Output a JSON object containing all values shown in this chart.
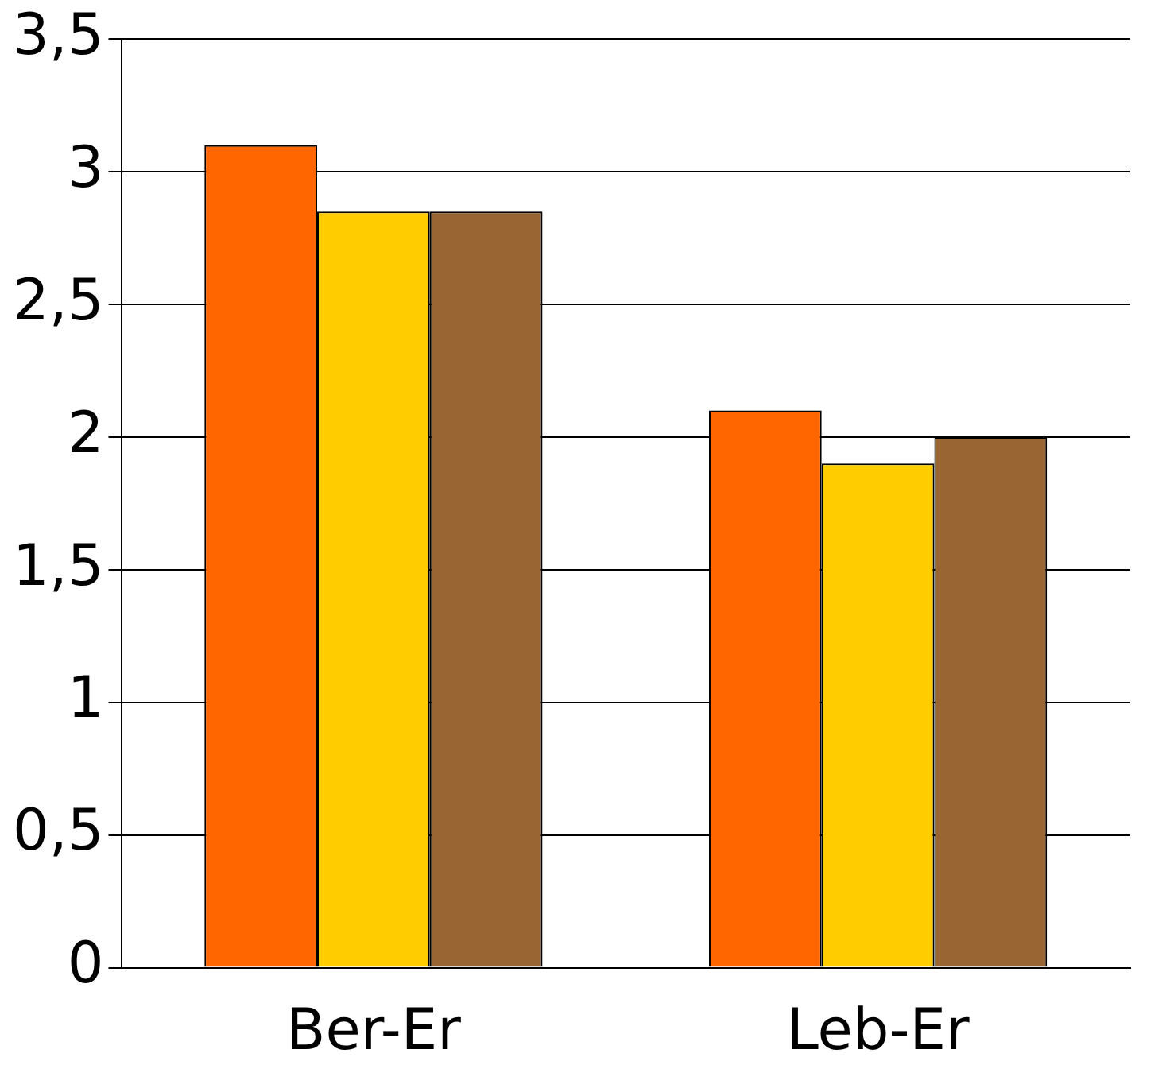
{
  "chart_data": {
    "type": "bar",
    "categories": [
      "Ber-Er",
      "Leb-Er"
    ],
    "series": [
      {
        "color": "#ff6600",
        "values": [
          3.1,
          2.1
        ]
      },
      {
        "color": "#ffcc00",
        "values": [
          2.85,
          1.9
        ]
      },
      {
        "color": "#996633",
        "values": [
          2.85,
          2.0
        ]
      }
    ],
    "ylim": [
      0,
      3.5
    ],
    "yticks": [
      {
        "value": 0,
        "label": "0"
      },
      {
        "value": 0.5,
        "label": "0,5"
      },
      {
        "value": 1,
        "label": "1"
      },
      {
        "value": 1.5,
        "label": "1,5"
      },
      {
        "value": 2,
        "label": "2"
      },
      {
        "value": 2.5,
        "label": "2,5"
      },
      {
        "value": 3,
        "label": "3"
      },
      {
        "value": 3.5,
        "label": "3,5"
      }
    ],
    "grid": "y",
    "legend": false
  }
}
